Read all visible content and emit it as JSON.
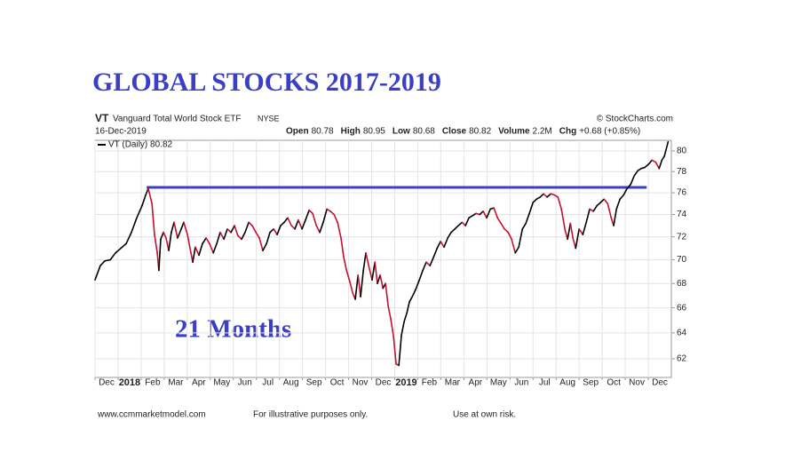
{
  "chart_data": {
    "type": "line",
    "title": "GLOBAL STOCKS 2017-2019",
    "header": {
      "symbol": "VT",
      "name": "Vanguard Total World Stock ETF",
      "exchange": "NYSE",
      "source": "© StockCharts.com",
      "date": "16-Dec-2019",
      "quote": [
        {
          "label": "Open",
          "value": "80.78"
        },
        {
          "label": "High",
          "value": "80.95"
        },
        {
          "label": "Low",
          "value": "80.68"
        },
        {
          "label": "Close",
          "value": "80.82"
        },
        {
          "label": "Volume",
          "value": "2.2M"
        },
        {
          "label": "Chg",
          "value": "+0.68 (+0.85%)"
        }
      ]
    },
    "annotations": [
      "21 Months"
    ],
    "footer": [
      "www.ccmmarketmodel.com",
      "For illustrative purposes only.",
      "Use at own risk."
    ],
    "log_scale": true,
    "grid": true,
    "down_color": "#c8102e",
    "hline": {
      "value": 76.5,
      "x": [
        2.24,
        23.93
      ],
      "color": "#3b3fc4"
    },
    "xlim": [
      0,
      25
    ],
    "ylim": [
      60.6,
      81.05
    ],
    "xticks": [
      {
        "value": 0,
        "label": "Dec"
      },
      {
        "value": 1,
        "label": "2018"
      },
      {
        "value": 2,
        "label": "Feb"
      },
      {
        "value": 3,
        "label": "Mar"
      },
      {
        "value": 4,
        "label": "Apr"
      },
      {
        "value": 5,
        "label": "May"
      },
      {
        "value": 6,
        "label": "Jun"
      },
      {
        "value": 7,
        "label": "Jul"
      },
      {
        "value": 8,
        "label": "Aug"
      },
      {
        "value": 9,
        "label": "Sep"
      },
      {
        "value": 10,
        "label": "Oct"
      },
      {
        "value": 11,
        "label": "Nov"
      },
      {
        "value": 12,
        "label": "Dec"
      },
      {
        "value": 13,
        "label": "2019"
      },
      {
        "value": 14,
        "label": "Feb"
      },
      {
        "value": 15,
        "label": "Mar"
      },
      {
        "value": 16,
        "label": "Apr"
      },
      {
        "value": 17,
        "label": "May"
      },
      {
        "value": 18,
        "label": "Jun"
      },
      {
        "value": 19,
        "label": "Jul"
      },
      {
        "value": 20,
        "label": "Aug"
      },
      {
        "value": 21,
        "label": "Sep"
      },
      {
        "value": 22,
        "label": "Oct"
      },
      {
        "value": 23,
        "label": "Nov"
      },
      {
        "value": 24,
        "label": "Dec"
      }
    ],
    "yticks": [
      62,
      64,
      66,
      68,
      70,
      72,
      74,
      76,
      78,
      80
    ],
    "x": [
      0,
      0.23,
      0.42,
      0.66,
      0.89,
      1.12,
      1.35,
      1.58,
      1.81,
      2.04,
      2.2,
      2.31,
      2.47,
      2.58,
      2.7,
      2.77,
      2.85,
      2.97,
      3.08,
      3.2,
      3.31,
      3.43,
      3.58,
      3.74,
      3.85,
      4.01,
      4.16,
      4.24,
      4.35,
      4.51,
      4.66,
      4.82,
      4.97,
      5.13,
      5.28,
      5.43,
      5.59,
      5.74,
      5.9,
      6.05,
      6.2,
      6.36,
      6.51,
      6.67,
      6.82,
      6.98,
      7.13,
      7.28,
      7.44,
      7.59,
      7.75,
      7.9,
      8.05,
      8.21,
      8.36,
      8.52,
      8.67,
      8.82,
      8.98,
      9.13,
      9.29,
      9.44,
      9.6,
      9.75,
      9.9,
      10.06,
      10.21,
      10.37,
      10.52,
      10.67,
      10.79,
      10.91,
      11.06,
      11.18,
      11.29,
      11.41,
      11.52,
      11.64,
      11.75,
      11.87,
      12.02,
      12.14,
      12.25,
      12.37,
      12.49,
      12.6,
      12.72,
      12.83,
      12.95,
      13.06,
      13.18,
      13.29,
      13.41,
      13.53,
      13.64,
      13.76,
      13.91,
      14.07,
      14.22,
      14.37,
      14.53,
      14.68,
      14.84,
      14.99,
      15.14,
      15.3,
      15.45,
      15.61,
      15.76,
      15.92,
      16.07,
      16.22,
      16.38,
      16.53,
      16.69,
      16.84,
      16.99,
      17.15,
      17.3,
      17.46,
      17.61,
      17.76,
      17.92,
      18.07,
      18.23,
      18.38,
      18.54,
      18.69,
      18.84,
      19,
      19.15,
      19.31,
      19.46,
      19.61,
      19.77,
      19.92,
      20.08,
      20.23,
      20.39,
      20.5,
      20.62,
      20.73,
      20.85,
      21,
      21.16,
      21.31,
      21.46,
      21.62,
      21.77,
      21.93,
      22.08,
      22.24,
      22.39,
      22.5,
      22.62,
      22.77,
      22.93,
      23.08,
      23.24,
      23.39,
      23.55,
      23.7,
      23.85,
      24.01,
      24.16,
      24.32,
      24.47,
      24.59,
      24.7,
      24.86
    ],
    "series": [
      {
        "name": "VT (Daily) 80.82",
        "color": "#000000",
        "values": [
          68.3,
          69.5,
          69.9,
          70.0,
          70.6,
          71.0,
          71.4,
          72.4,
          73.7,
          74.8,
          75.8,
          76.4,
          75.0,
          72.2,
          70.6,
          69.1,
          71.8,
          72.4,
          71.9,
          70.8,
          72.4,
          73.3,
          71.9,
          72.7,
          73.3,
          72.2,
          70.6,
          69.8,
          71.1,
          70.4,
          71.4,
          71.9,
          71.4,
          70.6,
          71.4,
          72.4,
          71.8,
          72.7,
          72.4,
          73.0,
          72.1,
          71.8,
          72.4,
          73.3,
          73.0,
          72.4,
          71.9,
          70.8,
          71.4,
          72.4,
          72.7,
          72.2,
          73.0,
          73.3,
          73.7,
          73.0,
          72.7,
          73.5,
          72.7,
          73.5,
          74.4,
          74.1,
          73.0,
          72.4,
          73.3,
          74.5,
          74.3,
          74.0,
          73.3,
          71.9,
          70.2,
          69.1,
          68.1,
          67.2,
          66.7,
          68.7,
          66.9,
          69.1,
          70.6,
          69.5,
          68.3,
          69.8,
          68.0,
          68.7,
          67.6,
          68.0,
          66.1,
          65.1,
          63.7,
          61.6,
          61.5,
          63.8,
          64.9,
          65.6,
          66.5,
          66.9,
          67.5,
          68.3,
          69.1,
          69.8,
          69.5,
          70.2,
          71.0,
          71.6,
          71.1,
          71.9,
          72.4,
          72.7,
          73.0,
          73.3,
          73.0,
          73.7,
          73.9,
          74.1,
          74.0,
          74.3,
          73.7,
          74.5,
          74.6,
          73.7,
          73.2,
          72.7,
          72.4,
          71.8,
          70.6,
          71.1,
          72.7,
          73.2,
          74.1,
          75.1,
          75.4,
          75.6,
          75.9,
          75.6,
          75.9,
          75.8,
          75.6,
          74.5,
          72.6,
          71.8,
          73.2,
          71.9,
          71.0,
          72.7,
          72.2,
          73.3,
          74.5,
          74.3,
          74.8,
          75.1,
          75.4,
          75.0,
          73.7,
          73.0,
          74.5,
          75.4,
          75.8,
          76.4,
          76.8,
          77.6,
          78.1,
          78.3,
          78.4,
          78.7,
          79.1,
          78.9,
          78.3,
          79.1,
          79.5,
          80.9
        ]
      }
    ]
  }
}
